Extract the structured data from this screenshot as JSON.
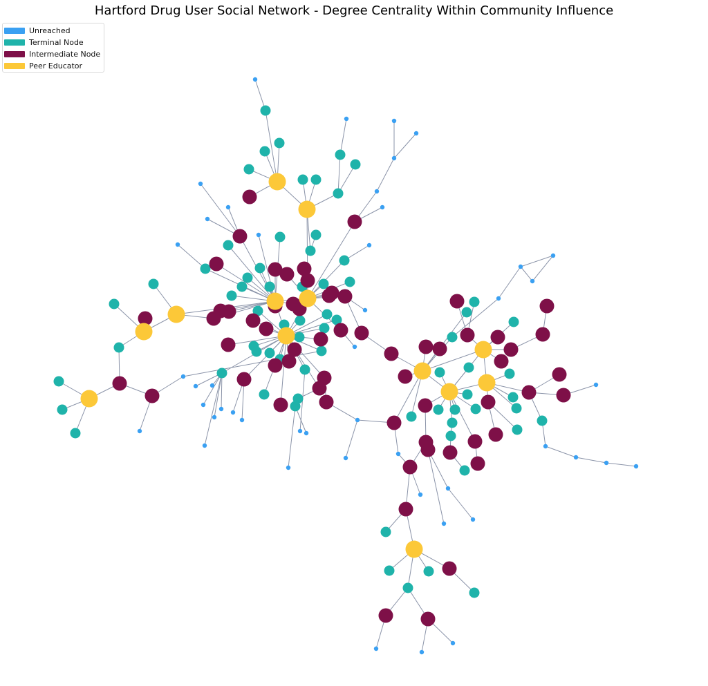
{
  "title": "Hartford Drug User Social Network - Degree Centrality Within Community Influence",
  "legend": [
    {
      "label": "Unreached",
      "color": "#3aa0f2"
    },
    {
      "label": "Terminal Node",
      "color": "#1fb3aa"
    },
    {
      "label": "Intermediate Node",
      "color": "#7e1048"
    },
    {
      "label": "Peer Educator",
      "color": "#fcc838"
    }
  ],
  "colors": {
    "edge": "#8a93a8",
    "unreached": "#3aa0f2",
    "terminal": "#1fb3aa",
    "intermediate": "#7e1048",
    "peer_educator": "#fcc838"
  }
}
